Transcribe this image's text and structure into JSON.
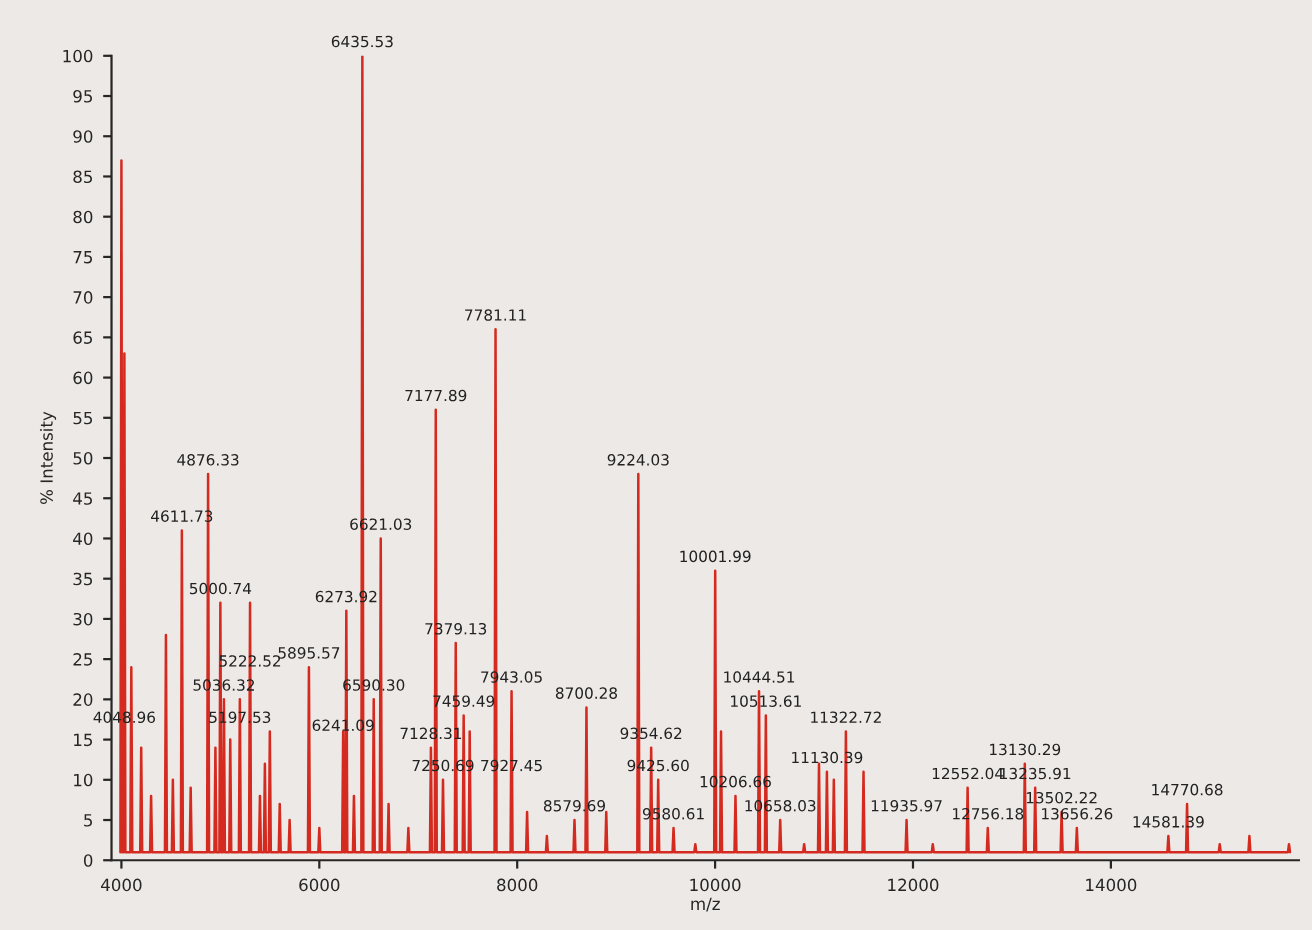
{
  "chart_data": {
    "type": "line",
    "xlabel": "m/z",
    "ylabel": "% Intensity",
    "xlim": [
      3900,
      15900
    ],
    "xticks": [
      4000,
      6000,
      8000,
      10000,
      12000,
      14000
    ],
    "ylim": [
      0,
      100
    ],
    "yticks": [
      0,
      5,
      10,
      15,
      20,
      25,
      30,
      35,
      40,
      45,
      50,
      55,
      60,
      65,
      70,
      75,
      80,
      85,
      90,
      95,
      100
    ],
    "grid": false,
    "legend": false,
    "marker": "none",
    "line_style": "solid",
    "series": [
      {
        "color": "#d42a1f",
        "x": [
          3990,
          4000,
          4010,
          4020,
          4030,
          4040,
          4090,
          4100,
          4110,
          4190,
          4200,
          4210,
          4290,
          4300,
          4310,
          4440,
          4450,
          4460,
          4510,
          4520,
          4530,
          4601,
          4611,
          4621,
          4690,
          4700,
          4710,
          4866,
          4876,
          4886,
          4940,
          4950,
          4960,
          4990,
          5000,
          5010,
          5026,
          5036,
          5046,
          5090,
          5100,
          5110,
          5187,
          5197,
          5207,
          5290,
          5300,
          5310,
          5390,
          5400,
          5410,
          5440,
          5450,
          5460,
          5490,
          5500,
          5510,
          5590,
          5600,
          5610,
          5690,
          5700,
          5710,
          5885,
          5895,
          5905,
          5990,
          6000,
          6010,
          6231,
          6241,
          6251,
          6263,
          6273,
          6283,
          6340,
          6350,
          6360,
          6425,
          6435,
          6445,
          6540,
          6550,
          6560,
          6611,
          6621,
          6631,
          6690,
          6700,
          6710,
          6890,
          6900,
          6910,
          7118,
          7128,
          7138,
          7167,
          7177,
          7187,
          7240,
          7250,
          7260,
          7369,
          7379,
          7389,
          7449,
          7459,
          7469,
          7510,
          7520,
          7530,
          7771,
          7781,
          7791,
          7933,
          7943,
          7953,
          8090,
          8100,
          8110,
          8290,
          8300,
          8310,
          8569,
          8579,
          8589,
          8690,
          8700,
          8710,
          8890,
          8900,
          8910,
          9214,
          9224,
          9234,
          9344,
          9354,
          9364,
          9415,
          9425,
          9435,
          9570,
          9580,
          9590,
          9790,
          9800,
          9810,
          9991,
          10001,
          10011,
          10050,
          10060,
          10070,
          10196,
          10206,
          10216,
          10434,
          10444,
          10454,
          10503,
          10513,
          10523,
          10648,
          10658,
          10668,
          10890,
          10900,
          10910,
          11040,
          11050,
          11060,
          11120,
          11130,
          11140,
          11190,
          11200,
          11210,
          11312,
          11322,
          11332,
          11490,
          11500,
          11510,
          11925,
          11935,
          11945,
          12190,
          12200,
          12210,
          12542,
          12552,
          12562,
          12746,
          12756,
          12766,
          13120,
          13130,
          13140,
          13225,
          13235,
          13245,
          13492,
          13502,
          13512,
          13646,
          13656,
          13666,
          13990,
          14000,
          14010,
          14571,
          14581,
          14591,
          14760,
          14770,
          14780,
          15090,
          15100,
          15110,
          15390,
          15400,
          15410,
          15790,
          15800,
          15810
        ],
        "values": [
          1,
          87,
          1,
          1,
          63,
          1,
          1,
          24,
          1,
          1,
          14,
          1,
          1,
          8,
          1,
          1,
          28,
          1,
          1,
          10,
          1,
          1,
          41,
          1,
          1,
          9,
          1,
          1,
          48,
          1,
          1,
          14,
          1,
          1,
          32,
          1,
          1,
          20,
          1,
          1,
          15,
          1,
          1,
          20,
          1,
          1,
          32,
          1,
          1,
          8,
          1,
          1,
          12,
          1,
          1,
          16,
          1,
          1,
          7,
          1,
          1,
          5,
          1,
          1,
          24,
          1,
          1,
          4,
          1,
          1,
          16,
          1,
          1,
          31,
          1,
          1,
          8,
          1,
          1,
          100,
          1,
          1,
          20,
          1,
          1,
          40,
          1,
          1,
          7,
          1,
          1,
          4,
          1,
          1,
          14,
          1,
          1,
          56,
          1,
          1,
          10,
          1,
          1,
          27,
          1,
          1,
          18,
          1,
          1,
          16,
          1,
          1,
          66,
          1,
          1,
          21,
          1,
          1,
          6,
          1,
          1,
          3,
          1,
          1,
          5,
          1,
          1,
          19,
          1,
          1,
          6,
          1,
          1,
          48,
          1,
          1,
          14,
          1,
          1,
          10,
          1,
          1,
          4,
          1,
          1,
          2,
          1,
          1,
          36,
          1,
          1,
          16,
          1,
          1,
          8,
          1,
          1,
          21,
          1,
          1,
          18,
          1,
          1,
          5,
          1,
          1,
          2,
          1,
          1,
          12,
          1,
          1,
          11,
          1,
          1,
          10,
          1,
          1,
          16,
          1,
          1,
          11,
          1,
          1,
          5,
          1,
          1,
          2,
          1,
          1,
          9,
          1,
          1,
          4,
          1,
          1,
          12,
          1,
          1,
          9,
          1,
          1,
          6,
          1,
          1,
          4,
          1,
          1,
          1,
          1,
          1,
          3,
          1,
          1,
          7,
          1,
          1,
          2,
          1,
          1,
          3,
          1,
          1,
          2,
          1
        ]
      }
    ],
    "annotations": [
      {
        "text": "4048.96",
        "x": 4030,
        "y": 16
      },
      {
        "text": "4611.73",
        "x": 4611,
        "y": 41
      },
      {
        "text": "4876.33",
        "x": 4876,
        "y": 48
      },
      {
        "text": "5000.74",
        "x": 5000,
        "y": 32
      },
      {
        "text": "5222.52",
        "x": 5300,
        "y": 23
      },
      {
        "text": "5036.32",
        "x": 5036,
        "y": 20
      },
      {
        "text": "5197.53",
        "x": 5197,
        "y": 16
      },
      {
        "text": "5895.57",
        "x": 5895,
        "y": 24
      },
      {
        "text": "6241.09",
        "x": 6241,
        "y": 15
      },
      {
        "text": "6273.92",
        "x": 6273,
        "y": 31
      },
      {
        "text": "6435.53",
        "x": 6435,
        "y": 100
      },
      {
        "text": "6590.30",
        "x": 6550,
        "y": 20
      },
      {
        "text": "6621.03",
        "x": 6621,
        "y": 40
      },
      {
        "text": "7128.31",
        "x": 7128,
        "y": 14
      },
      {
        "text": "7177.89",
        "x": 7177,
        "y": 56
      },
      {
        "text": "7250.69",
        "x": 7250,
        "y": 10
      },
      {
        "text": "7379.13",
        "x": 7379,
        "y": 27
      },
      {
        "text": "7459.49",
        "x": 7459,
        "y": 18
      },
      {
        "text": "7781.11",
        "x": 7781,
        "y": 66
      },
      {
        "text": "7927.45",
        "x": 7943,
        "y": 10
      },
      {
        "text": "7943.05",
        "x": 7943,
        "y": 21
      },
      {
        "text": "8579.69",
        "x": 8579,
        "y": 5
      },
      {
        "text": "8700.28",
        "x": 8700,
        "y": 19
      },
      {
        "text": "9224.03",
        "x": 9224,
        "y": 48
      },
      {
        "text": "9354.62",
        "x": 9354,
        "y": 14
      },
      {
        "text": "9425.60",
        "x": 9425,
        "y": 10
      },
      {
        "text": "9580.61",
        "x": 9580,
        "y": 4
      },
      {
        "text": "10001.99",
        "x": 10001,
        "y": 36
      },
      {
        "text": "10206.66",
        "x": 10206,
        "y": 8
      },
      {
        "text": "10444.51",
        "x": 10444,
        "y": 21
      },
      {
        "text": "10513.61",
        "x": 10513,
        "y": 18
      },
      {
        "text": "10658.03",
        "x": 10658,
        "y": 5
      },
      {
        "text": "11130.39",
        "x": 11130,
        "y": 11
      },
      {
        "text": "11322.72",
        "x": 11322,
        "y": 16
      },
      {
        "text": "11935.97",
        "x": 11935,
        "y": 5
      },
      {
        "text": "12552.04",
        "x": 12552,
        "y": 9
      },
      {
        "text": "12756.18",
        "x": 12756,
        "y": 4
      },
      {
        "text": "13130.29",
        "x": 13130,
        "y": 12
      },
      {
        "text": "13235.91",
        "x": 13235,
        "y": 9
      },
      {
        "text": "13502.22",
        "x": 13502,
        "y": 6
      },
      {
        "text": "13656.26",
        "x": 13656,
        "y": 4
      },
      {
        "text": "14581.39",
        "x": 14581,
        "y": 3
      },
      {
        "text": "14770.68",
        "x": 14770,
        "y": 7
      }
    ]
  }
}
